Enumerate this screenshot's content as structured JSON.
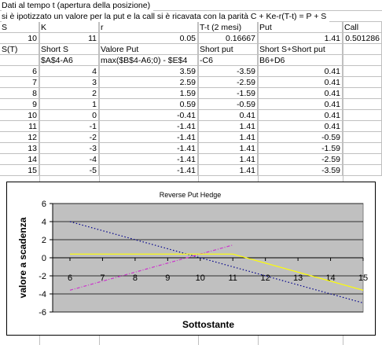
{
  "header": {
    "row1": "Dati al tempo t (apertura della posizione)",
    "row2": "si è ipotizzato un valore per la put e la call si è ricavata con la parità C + Ke-r(T-t) = P + S"
  },
  "params": {
    "labels": [
      "S",
      "K",
      "r",
      "T-t (2 mesi)",
      "Put",
      "Call"
    ],
    "values": [
      "10",
      "11",
      "0.05",
      "0.16667",
      "1.41",
      "0.501286"
    ]
  },
  "columns": {
    "headers": [
      "S(T)",
      "Short S",
      "Valore Put",
      "Short put",
      "Short S+Short put"
    ],
    "formulas": [
      "",
      "$A$4-A6",
      "max($B$4-A6;0) - $E$4",
      "-C6",
      "B6+D6"
    ]
  },
  "table": {
    "rows": [
      [
        "6",
        "4",
        "3.59",
        "-3.59",
        "0.41"
      ],
      [
        "7",
        "3",
        "2.59",
        "-2.59",
        "0.41"
      ],
      [
        "8",
        "2",
        "1.59",
        "-1.59",
        "0.41"
      ],
      [
        "9",
        "1",
        "0.59",
        "-0.59",
        "0.41"
      ],
      [
        "10",
        "0",
        "-0.41",
        "0.41",
        "0.41"
      ],
      [
        "11",
        "-1",
        "-1.41",
        "1.41",
        "0.41"
      ],
      [
        "12",
        "-2",
        "-1.41",
        "1.41",
        "-0.59"
      ],
      [
        "13",
        "-3",
        "-1.41",
        "1.41",
        "-1.59"
      ],
      [
        "14",
        "-4",
        "-1.41",
        "1.41",
        "-2.59"
      ],
      [
        "15",
        "-5",
        "-1.41",
        "1.41",
        "-3.59"
      ]
    ]
  },
  "chart_data": {
    "type": "line",
    "title": "Reverse Put Hedge",
    "xlabel": "Sottostante",
    "ylabel": "valore a scadenza",
    "xlim": [
      6,
      15
    ],
    "ylim": [
      -6,
      6
    ],
    "yticks": [
      -6,
      -4,
      -2,
      0,
      2,
      4,
      6
    ],
    "xticks": [
      6,
      7,
      8,
      9,
      10,
      11,
      12,
      13,
      14,
      15
    ],
    "grid": true,
    "legend": "none",
    "series": [
      {
        "style": "dotted",
        "color": "#00008b",
        "x": [
          6,
          7,
          8,
          9,
          10,
          11,
          12,
          13,
          14,
          15
        ],
        "y": [
          4,
          3,
          2,
          1,
          0,
          -1,
          -2,
          -3,
          -4,
          -5
        ]
      },
      {
        "style": "dashdot",
        "color": "#cc33cc",
        "x": [
          6,
          7,
          8,
          9,
          10,
          11
        ],
        "y": [
          -3.59,
          -2.59,
          -1.59,
          -0.59,
          0.41,
          1.41
        ]
      },
      {
        "style": "solid",
        "color": "#ffff00",
        "x": [
          6,
          7,
          8,
          9,
          10,
          11,
          12,
          13,
          14,
          15
        ],
        "y": [
          0.41,
          0.41,
          0.41,
          0.41,
          0.41,
          0.41,
          -0.59,
          -1.59,
          -2.59,
          -3.59
        ]
      }
    ],
    "colors": {
      "plot_area": "#c0c0c0",
      "frame": "#000000"
    }
  }
}
